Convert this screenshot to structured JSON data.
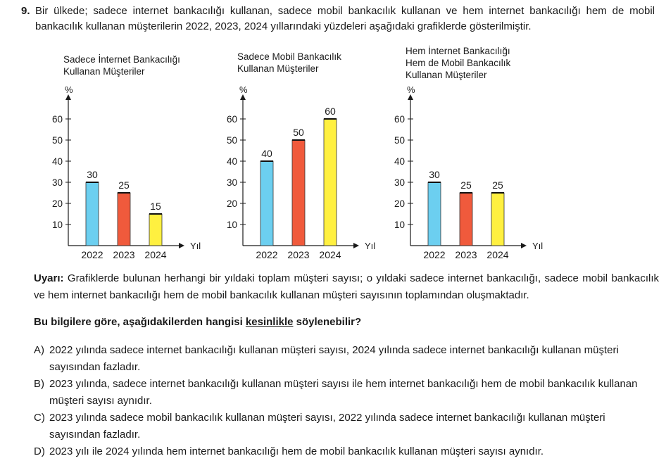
{
  "question": {
    "number": "9.",
    "text": "Bir ülkede; sadece internet bankacılığı kullanan, sadece mobil bankacılık kullanan ve hem internet bankacılığı hem de mobil bankacılık kullanan müşterilerin 2022, 2023, 2024 yıllarındaki yüzdeleri aşağıdaki grafiklerde gösterilmiştir."
  },
  "chart_data": [
    {
      "type": "bar",
      "title": "Sadece İnternet Bankacılığı\nKullanan Müşteriler",
      "ylabel": "%",
      "xlabel": "Yıl",
      "categories": [
        "2022",
        "2023",
        "2024"
      ],
      "values": [
        30,
        25,
        15
      ],
      "colors": [
        "#6ccff0",
        "#f05a3c",
        "#fff040"
      ],
      "yticks": [
        10,
        20,
        30,
        40,
        50,
        60
      ],
      "ylim": [
        0,
        70
      ]
    },
    {
      "type": "bar",
      "title": "Sadece Mobil Bankacılık\nKullanan Müşteriler",
      "ylabel": "%",
      "xlabel": "Yıl",
      "categories": [
        "2022",
        "2023",
        "2024"
      ],
      "values": [
        40,
        50,
        60
      ],
      "colors": [
        "#6ccff0",
        "#f05a3c",
        "#fff040"
      ],
      "yticks": [
        10,
        20,
        30,
        40,
        50,
        60
      ],
      "ylim": [
        0,
        70
      ]
    },
    {
      "type": "bar",
      "title": "Hem İnternet Bankacılığı\nHem de Mobil Bankacılık\nKullanan Müşteriler",
      "ylabel": "%",
      "xlabel": "Yıl",
      "categories": [
        "2022",
        "2023",
        "2024"
      ],
      "values": [
        30,
        25,
        25
      ],
      "colors": [
        "#6ccff0",
        "#f05a3c",
        "#fff040"
      ],
      "yticks": [
        10,
        20,
        30,
        40,
        50,
        60
      ],
      "ylim": [
        0,
        70
      ]
    }
  ],
  "note": {
    "label": "Uyarı:",
    "text": " Grafiklerde bulunan herhangi bir yıldaki toplam müşteri sayısı; o yıldaki sadece internet bankacılığı, sadece mobil bankacılık ve hem internet bankacılığı hem de mobil bankacılık kullanan müşteri sayısının toplamından oluşmaktadır."
  },
  "prompt": {
    "before": "Bu bilgilere göre, aşağıdakilerden hangisi ",
    "underlined": "kesinlikle",
    "after": " söylenebilir?"
  },
  "options": [
    {
      "letter": "A)",
      "text": "2022 yılında sadece internet bankacılığı kullanan müşteri sayısı, 2024 yılında sadece internet bankacılığı kullanan müşteri sayısından fazladır."
    },
    {
      "letter": "B)",
      "text": "2023 yılında, sadece internet bankacılığı kullanan müşteri sayısı ile hem internet bankacılığı hem de mobil bankacılık kullanan müşteri sayısı aynıdır."
    },
    {
      "letter": "C)",
      "text": "2023 yılında sadece mobil bankacılık kullanan müşteri sayısı, 2022 yılında sadece internet bankacılığı kullanan müşteri sayısından fazladır."
    },
    {
      "letter": "D)",
      "text": "2023 yılı ile 2024 yılında hem internet bankacılığı hem de mobil bankacılık kullanan müşteri sayısı aynıdır."
    }
  ]
}
